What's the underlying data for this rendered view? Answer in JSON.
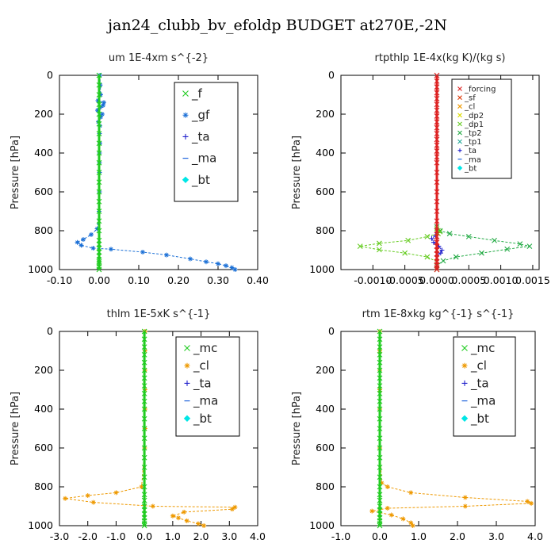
{
  "figure": {
    "title": "jan24_clubb_bv_efoldp  BUDGET at270E,-2N"
  },
  "colors": {
    "f": "#22cc22",
    "gf": "#1a6fd6",
    "ta": "#2222cc",
    "ma": "#2266dd",
    "bt": "#00e6e6",
    "forcing": "#dd2222",
    "sf": "#dd3300",
    "cl": "#ee9900",
    "dp2": "#dddd00",
    "dp1": "#66cc22",
    "tp2": "#22aa44",
    "tp1": "#22aa99",
    "mc": "#22cc22"
  },
  "chart_data": [
    {
      "type": "line",
      "title": "um   1E-4xm s^{-2}",
      "ylabel": "Pressure [hPa]",
      "xlim": [
        -0.1,
        0.4
      ],
      "ylim": [
        1000,
        0
      ],
      "xticks": [
        "-0.10",
        "0.00",
        "0.10",
        "0.20",
        "0.30",
        "0.40"
      ],
      "yticks": [
        "0",
        "200",
        "400",
        "600",
        "800",
        "1000"
      ],
      "series": [
        {
          "name": "_f",
          "color_key": "f",
          "marker": "x",
          "x": [
            0,
            0,
            0,
            0,
            0,
            0,
            0,
            0,
            0,
            0,
            0,
            0,
            0,
            0,
            0,
            0,
            0,
            0,
            0,
            0,
            0,
            0,
            0,
            0,
            0,
            0,
            0
          ],
          "y": [
            0,
            50,
            100,
            150,
            200,
            250,
            300,
            350,
            400,
            450,
            500,
            550,
            600,
            650,
            700,
            750,
            800,
            850,
            870,
            890,
            910,
            930,
            950,
            960,
            970,
            985,
            1000
          ]
        },
        {
          "name": "_gf",
          "color_key": "gf",
          "marker": "star",
          "x": [
            0.002,
            0.003,
            0.004,
            -0.003,
            0.012,
            0.01,
            0.003,
            -0.004,
            0.008,
            0.004,
            -0.002,
            0.002,
            0.001,
            0.002,
            0.001,
            0.001,
            0.001,
            0.001,
            0,
            -0.005,
            -0.02,
            -0.04,
            -0.055,
            -0.045,
            -0.015,
            0.03,
            0.11,
            0.17,
            0.23,
            0.27,
            0.3,
            0.32,
            0.335,
            0.343
          ],
          "y": [
            0,
            50,
            100,
            130,
            140,
            155,
            165,
            180,
            200,
            215,
            240,
            260,
            300,
            350,
            400,
            450,
            500,
            600,
            700,
            790,
            820,
            845,
            860,
            875,
            890,
            895,
            910,
            925,
            945,
            960,
            970,
            980,
            990,
            1000
          ]
        },
        {
          "name": "_ta",
          "color_key": "ta",
          "marker": "plus",
          "x": [],
          "y": []
        },
        {
          "name": "_ma",
          "color_key": "ma",
          "marker": "dash",
          "x": [],
          "y": []
        },
        {
          "name": "_bt",
          "color_key": "bt",
          "marker": "diamond",
          "x": [],
          "y": []
        }
      ]
    },
    {
      "type": "line",
      "title": "rtpthlp   1E-4x(kg K)/(kg s)",
      "ylabel": "Pressure [hPa]",
      "xlim": [
        -0.0015,
        0.0016
      ],
      "ylim": [
        1000,
        0
      ],
      "xticks": [
        "-0.0010",
        "-0.0005",
        "0.0000",
        "0.0005",
        "0.0010",
        "0.0015"
      ],
      "yticks": [
        "0",
        "200",
        "400",
        "600",
        "800",
        "1000"
      ],
      "series": [
        {
          "name": "_forcing",
          "color_key": "forcing",
          "marker": "x",
          "x": [
            0,
            0,
            0,
            0,
            0,
            0,
            0,
            0,
            0,
            0,
            0,
            0,
            0,
            0,
            0,
            0,
            0,
            0,
            0,
            0,
            0,
            0,
            0,
            0,
            0,
            0,
            0,
            0,
            0,
            0,
            0,
            0,
            0
          ],
          "y": [
            0,
            30,
            60,
            90,
            120,
            150,
            180,
            210,
            240,
            270,
            300,
            330,
            360,
            390,
            420,
            450,
            500,
            550,
            600,
            650,
            700,
            750,
            800,
            830,
            860,
            880,
            900,
            920,
            940,
            960,
            975,
            990,
            1000
          ]
        },
        {
          "name": "_sf",
          "color_key": "sf",
          "marker": "x",
          "x": [],
          "y": []
        },
        {
          "name": "_cl",
          "color_key": "cl",
          "marker": "x",
          "x": [],
          "y": []
        },
        {
          "name": "_dp2",
          "color_key": "dp2",
          "marker": "x",
          "x": [],
          "y": []
        },
        {
          "name": "_dp1",
          "color_key": "dp1",
          "marker": "x",
          "x": [
            0,
            2e-05,
            5e-05,
            2e-05,
            -0.00015,
            -0.00045,
            -0.0009,
            -0.0012,
            -0.0009,
            -0.0005,
            -0.00015,
            0,
            0
          ],
          "y": [
            790,
            800,
            805,
            815,
            830,
            850,
            865,
            880,
            898,
            915,
            935,
            960,
            1000
          ]
        },
        {
          "name": "_tp2",
          "color_key": "tp2",
          "marker": "x",
          "x": [
            0,
            5e-05,
            0.0002,
            0.0005,
            0.0009,
            0.0013,
            0.00145,
            0.0011,
            0.0007,
            0.0003,
            0.0001,
            0
          ],
          "y": [
            780,
            800,
            815,
            830,
            850,
            868,
            880,
            895,
            915,
            935,
            955,
            980
          ]
        },
        {
          "name": "_tp1",
          "color_key": "tp1",
          "marker": "x",
          "x": [],
          "y": []
        },
        {
          "name": "_ta",
          "color_key": "ta",
          "marker": "plus",
          "x": [
            0,
            -2e-05,
            -8e-05,
            -5e-05,
            3e-05,
            8e-05,
            6e-05,
            0
          ],
          "y": [
            810,
            825,
            840,
            860,
            880,
            900,
            915,
            930
          ]
        },
        {
          "name": "_ma",
          "color_key": "ma",
          "marker": "dash",
          "x": [],
          "y": []
        },
        {
          "name": "_bt",
          "color_key": "bt",
          "marker": "diamond",
          "x": [],
          "y": []
        }
      ]
    },
    {
      "type": "line",
      "title": "thlm   1E-5xK s^{-1}",
      "ylabel": "Pressure [hPa]",
      "xlim": [
        -3.0,
        4.0
      ],
      "ylim": [
        1000,
        0
      ],
      "xticks": [
        "-3.0",
        "-2.0",
        "-1.0",
        "0.0",
        "1.0",
        "2.0",
        "3.0",
        "4.0"
      ],
      "yticks": [
        "0",
        "200",
        "400",
        "600",
        "800",
        "1000"
      ],
      "series": [
        {
          "name": "_mc",
          "color_key": "mc",
          "marker": "x",
          "x": [
            0,
            0,
            0,
            0,
            0,
            0,
            0,
            0,
            0,
            0,
            0,
            0,
            0,
            0,
            0,
            0,
            0,
            0,
            0,
            0,
            0,
            0,
            0,
            0,
            0,
            0,
            0,
            0
          ],
          "y": [
            0,
            40,
            80,
            120,
            160,
            200,
            240,
            280,
            320,
            360,
            400,
            450,
            500,
            550,
            600,
            650,
            700,
            750,
            800,
            840,
            870,
            900,
            920,
            940,
            960,
            975,
            990,
            1000
          ]
        },
        {
          "name": "_cl",
          "color_key": "cl",
          "marker": "star",
          "x": [
            0.02,
            0.02,
            0.02,
            0.02,
            0.02,
            0.02,
            0.01,
            -0.1,
            -1.0,
            -2.0,
            -2.8,
            -1.8,
            0.3,
            3.2,
            3.1,
            1.4,
            1.0,
            1.2,
            1.5,
            1.9,
            2.1
          ],
          "y": [
            0,
            100,
            200,
            300,
            400,
            500,
            600,
            800,
            830,
            845,
            860,
            880,
            900,
            905,
            915,
            930,
            950,
            960,
            975,
            990,
            1000
          ]
        },
        {
          "name": "_ta",
          "color_key": "ta",
          "marker": "plus",
          "x": [],
          "y": []
        },
        {
          "name": "_ma",
          "color_key": "ma",
          "marker": "dash",
          "x": [],
          "y": []
        },
        {
          "name": "_bt",
          "color_key": "bt",
          "marker": "diamond",
          "x": [],
          "y": []
        }
      ]
    },
    {
      "type": "line",
      "title": "rtm   1E-8xkg kg^{-1} s^{-1}",
      "ylabel": "Pressure [hPa]",
      "xlim": [
        -1.0,
        4.0
      ],
      "ylim": [
        1000,
        0
      ],
      "xticks": [
        "-1.0",
        "0.0",
        "1.0",
        "2.0",
        "3.0",
        "4.0"
      ],
      "yticks": [
        "0",
        "200",
        "400",
        "600",
        "800",
        "1000"
      ],
      "series": [
        {
          "name": "_mc",
          "color_key": "mc",
          "marker": "x",
          "x": [
            0,
            0,
            0,
            0,
            0,
            0,
            0,
            0,
            0,
            0,
            0,
            0,
            0,
            0,
            0,
            0,
            0,
            0,
            0,
            0,
            0,
            0,
            0,
            0,
            0,
            0,
            0,
            0
          ],
          "y": [
            0,
            40,
            80,
            120,
            160,
            200,
            240,
            280,
            320,
            360,
            400,
            450,
            500,
            550,
            600,
            650,
            700,
            750,
            800,
            840,
            870,
            900,
            920,
            940,
            960,
            975,
            990,
            1000
          ]
        },
        {
          "name": "_cl",
          "color_key": "cl",
          "marker": "star",
          "x": [
            0,
            0,
            0,
            0,
            0,
            0,
            0.05,
            0.2,
            0.8,
            2.2,
            3.8,
            3.9,
            2.2,
            0.2,
            -0.2,
            0.3,
            0.6,
            0.8,
            0.85
          ],
          "y": [
            0,
            100,
            200,
            300,
            400,
            600,
            780,
            800,
            830,
            855,
            875,
            885,
            900,
            910,
            925,
            945,
            965,
            985,
            1000
          ]
        },
        {
          "name": "_ta",
          "color_key": "ta",
          "marker": "plus",
          "x": [],
          "y": []
        },
        {
          "name": "_ma",
          "color_key": "ma",
          "marker": "dash",
          "x": [],
          "y": []
        },
        {
          "name": "_bt",
          "color_key": "bt",
          "marker": "diamond",
          "x": [],
          "y": []
        }
      ]
    }
  ]
}
